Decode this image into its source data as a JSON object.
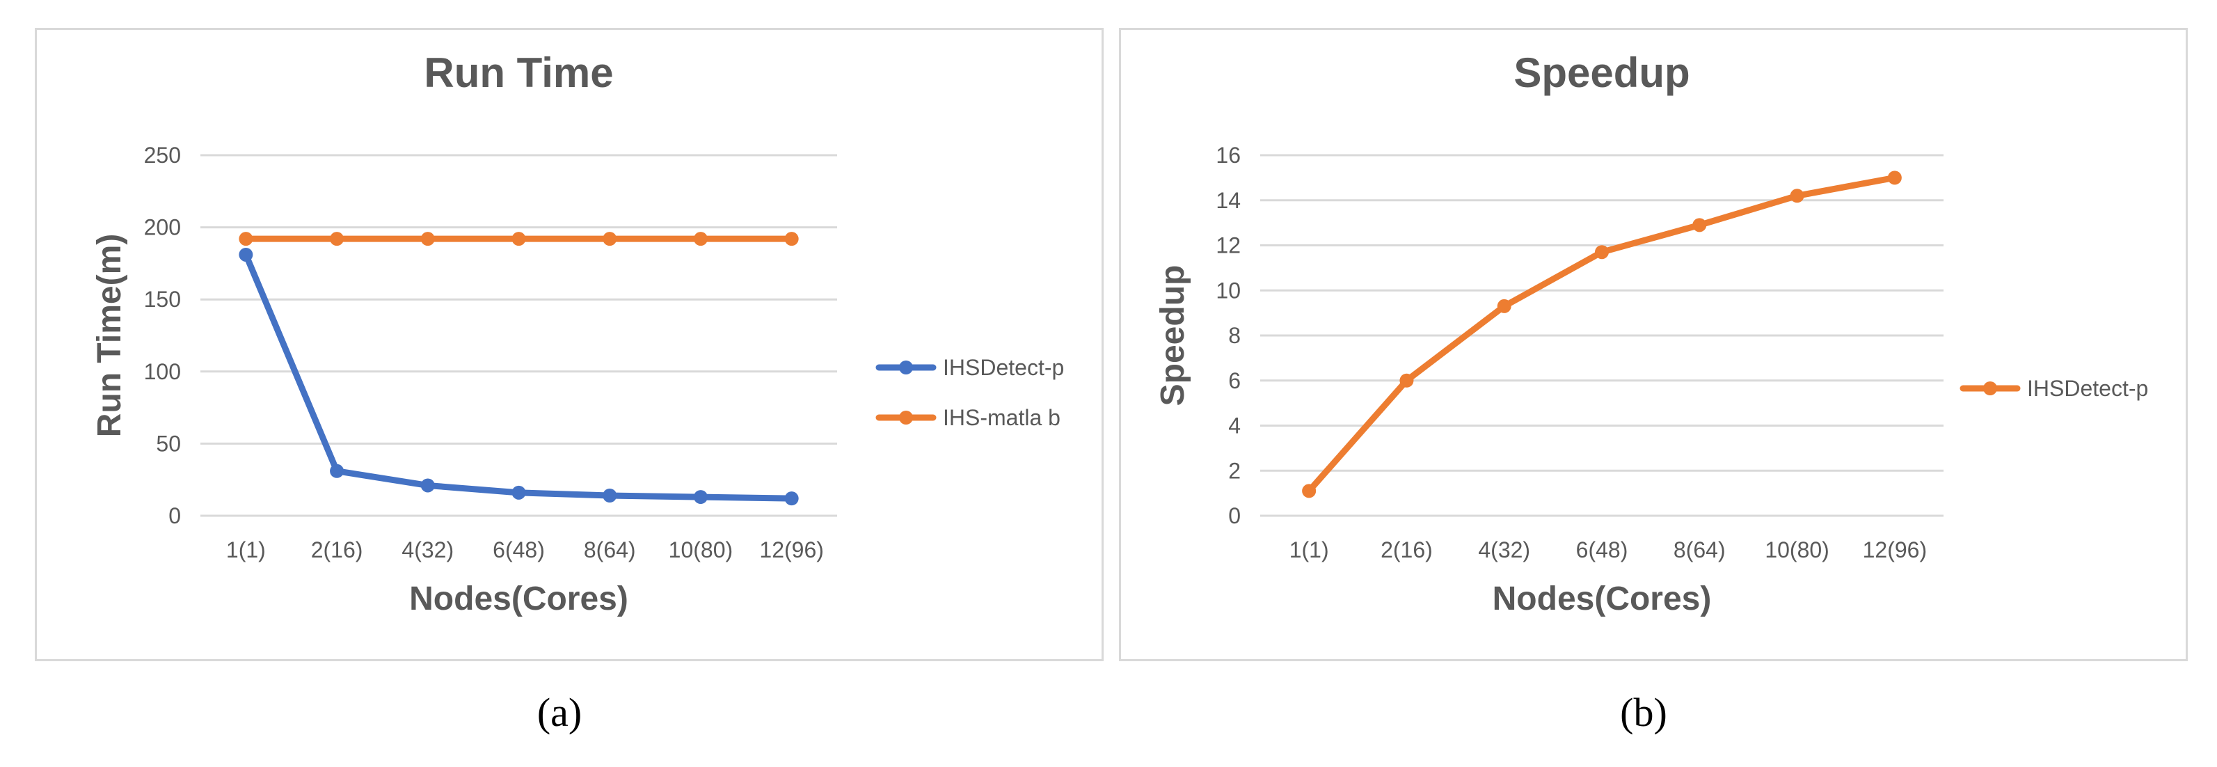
{
  "captions": [
    "(a)",
    "(b)"
  ],
  "colors": {
    "blue": "#4472c4",
    "orange": "#ed7d31",
    "grid": "#d9d9d9",
    "text": "#595959"
  },
  "chart_data": [
    {
      "type": "line",
      "title": "Run Time",
      "xlabel": "Nodes(Cores)",
      "ylabel": "Run Time(m)",
      "categories": [
        "1(1)",
        "2(16)",
        "4(32)",
        "6(48)",
        "8(64)",
        "10(80)",
        "12(96)"
      ],
      "ylim": [
        0,
        250
      ],
      "yticks": [
        0,
        50,
        100,
        150,
        200,
        250
      ],
      "grid": true,
      "legend": "right",
      "series": [
        {
          "name": "IHSDetect-p",
          "color": "#4472c4",
          "values": [
            181,
            31,
            21,
            16,
            14,
            13,
            12
          ]
        },
        {
          "name": "IHS-matla b",
          "color": "#ed7d31",
          "values": [
            192,
            192,
            192,
            192,
            192,
            192,
            192
          ]
        }
      ]
    },
    {
      "type": "line",
      "title": "Speedup",
      "xlabel": "Nodes(Cores)",
      "ylabel": "Speedup",
      "categories": [
        "1(1)",
        "2(16)",
        "4(32)",
        "6(48)",
        "8(64)",
        "10(80)",
        "12(96)"
      ],
      "ylim": [
        0,
        16
      ],
      "yticks": [
        0,
        2,
        4,
        6,
        8,
        10,
        12,
        14,
        16
      ],
      "grid": true,
      "legend": "right",
      "series": [
        {
          "name": "IHSDetect-p",
          "color": "#ed7d31",
          "values": [
            1.1,
            6.0,
            9.3,
            11.7,
            12.9,
            14.2,
            15.0
          ]
        }
      ]
    }
  ]
}
